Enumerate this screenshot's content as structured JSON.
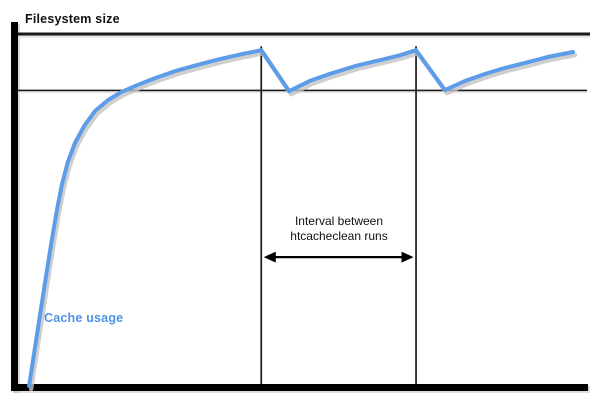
{
  "labels": {
    "filesystem_size": "Filesystem size",
    "cache_usage": "Cache usage",
    "interval_line1": "Interval between",
    "interval_line2": "htcacheclean runs"
  },
  "colors": {
    "curve": "#5D9CE8",
    "curve_shadow": "#C3C3C3",
    "label_blue": "#4D94E8",
    "axis": "#000000",
    "axis_shadow": "#B5B5B5",
    "line": "#1A1A1A",
    "arrow": "#000000"
  },
  "chart_data": {
    "type": "line",
    "title": "",
    "xlabel": "",
    "ylabel": "Filesystem size",
    "x_axis": {
      "range": [
        0,
        100
      ],
      "ticks": "none",
      "unit": "time (unlabeled, conceptual)"
    },
    "y_axis": {
      "range": [
        0,
        1
      ],
      "ticks": "none",
      "unit": "fraction of filesystem size (unlabeled, conceptual)"
    },
    "grid": false,
    "legend": "none (series labeled inline as 'Cache usage')",
    "reference_lines": {
      "filesystem_size": 1.0,
      "cache_limit": 0.84
    },
    "cleanup_times": [
      42.8,
      71.2
    ],
    "annotations": [
      {
        "text": "Interval between htcacheclean runs",
        "type": "double-arrow-between-cleanup-lines",
        "y": 0.368
      }
    ],
    "series": [
      {
        "name": "Cache usage",
        "points": [
          [
            0.2,
            0.003
          ],
          [
            2.2,
            0.204
          ],
          [
            4.0,
            0.382
          ],
          [
            5.3,
            0.501
          ],
          [
            6.2,
            0.572
          ],
          [
            7.3,
            0.637
          ],
          [
            8.6,
            0.691
          ],
          [
            10.3,
            0.739
          ],
          [
            12.3,
            0.782
          ],
          [
            14.7,
            0.813
          ],
          [
            17.2,
            0.836
          ],
          [
            20.0,
            0.855
          ],
          [
            23.3,
            0.875
          ],
          [
            27.0,
            0.895
          ],
          [
            31.0,
            0.912
          ],
          [
            35.2,
            0.929
          ],
          [
            39.3,
            0.943
          ],
          [
            42.8,
            0.954
          ],
          [
            47.9,
            0.838
          ],
          [
            51.7,
            0.867
          ],
          [
            55.4,
            0.887
          ],
          [
            60.0,
            0.909
          ],
          [
            64.6,
            0.926
          ],
          [
            68.3,
            0.94
          ],
          [
            71.2,
            0.954
          ],
          [
            76.5,
            0.841
          ],
          [
            80.2,
            0.867
          ],
          [
            83.9,
            0.887
          ],
          [
            87.5,
            0.904
          ],
          [
            91.2,
            0.918
          ],
          [
            95.4,
            0.935
          ],
          [
            100,
            0.949
          ]
        ]
      }
    ]
  }
}
